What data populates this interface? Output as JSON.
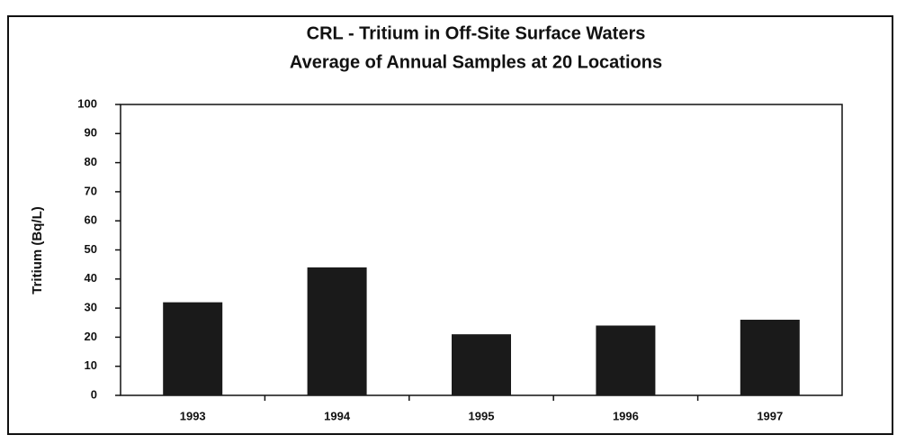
{
  "chart_data": {
    "type": "bar",
    "title": [
      "CRL - Tritium in Off-Site Surface Waters",
      "Average of Annual Samples at 20 Locations"
    ],
    "y_label": "Tritium (Bq/L)",
    "categories": [
      "1993",
      "1994",
      "1995",
      "1996",
      "1997"
    ],
    "values": [
      32,
      44,
      21,
      24,
      26
    ],
    "color": "#1a1a1a",
    "ylim": [
      0,
      100
    ],
    "yticks": [
      0,
      10,
      20,
      30,
      40,
      50,
      60,
      70,
      80,
      90,
      100
    ],
    "grid": false
  }
}
